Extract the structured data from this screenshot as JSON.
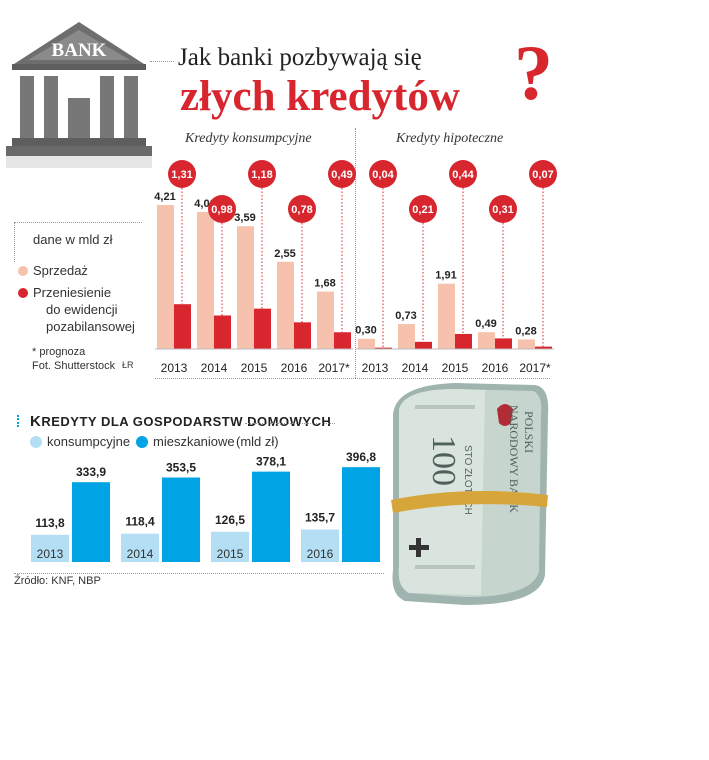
{
  "title_line1": "Jak banki pozbywają się",
  "title_line2": "złych kredytów",
  "title_qmark": "?",
  "bank_logo_text": "BANK",
  "colors": {
    "light": "#f7c2ad",
    "red": "#d7262e",
    "lightblue": "#b3def4",
    "blue": "#00a3e4"
  },
  "legend": {
    "unit": "dane w mld zł",
    "item1": "Sprzedaż",
    "item2_l1": "Przeniesienie",
    "item2_l2": "do ewidencji",
    "item2_l3": "pozabilansowej"
  },
  "notes": {
    "forecast": "* prognoza",
    "photo": "Fot. Shutterstock",
    "initials": "ŁR"
  },
  "section_left": "Kredyty konsumpcyjne",
  "section_right": "Kredyty hipoteczne",
  "household": {
    "title_rest": "REDYTY DLA GOSPODARSTW DOMOWYCH",
    "title_cap": "K",
    "legend1": "konsumpcyjne",
    "legend2": "mieszkaniowe",
    "unit": "(mld zł)"
  },
  "source": "Źródło: KNF, NBP",
  "chart_data": [
    {
      "type": "bar",
      "title": "Kredyty konsumpcyjne",
      "categories": [
        "2013",
        "2014",
        "2015",
        "2016",
        "2017*"
      ],
      "series": [
        {
          "name": "Sprzedaż",
          "values": [
            4.21,
            4.01,
            3.59,
            2.55,
            1.68
          ],
          "labels": [
            "4,21",
            "4,01",
            "3,59",
            "2,55",
            "1,68"
          ]
        },
        {
          "name": "Przeniesienie do ewidencji pozabilansowej",
          "values": [
            1.31,
            0.98,
            1.18,
            0.78,
            0.49
          ],
          "labels": [
            "1,31",
            "0,98",
            "1,18",
            "0,78",
            "0,49"
          ]
        }
      ]
    },
    {
      "type": "bar",
      "title": "Kredyty hipoteczne",
      "categories": [
        "2013",
        "2014",
        "2015",
        "2016",
        "2017*"
      ],
      "series": [
        {
          "name": "Sprzedaż",
          "values": [
            0.3,
            0.73,
            1.91,
            0.49,
            0.28
          ],
          "labels": [
            "0,30",
            "0,73",
            "1,91",
            "0,49",
            "0,28"
          ]
        },
        {
          "name": "Przeniesienie do ewidencji pozabilansowej",
          "values": [
            0.04,
            0.21,
            0.44,
            0.31,
            0.07
          ],
          "labels": [
            "0,04",
            "0,21",
            "0,44",
            "0,31",
            "0,07"
          ]
        }
      ]
    },
    {
      "type": "bar",
      "title": "Kredyty dla gospodarstw domowych",
      "categories": [
        "2013",
        "2014",
        "2015",
        "2016"
      ],
      "series": [
        {
          "name": "konsumpcyjne",
          "values": [
            113.8,
            118.4,
            126.5,
            135.7
          ],
          "labels": [
            "113,8",
            "118,4",
            "126,5",
            "135,7"
          ]
        },
        {
          "name": "mieszkaniowe",
          "values": [
            333.9,
            353.5,
            378.1,
            396.8
          ],
          "labels": [
            "333,9",
            "353,5",
            "378,1",
            "396,8"
          ]
        }
      ]
    }
  ]
}
